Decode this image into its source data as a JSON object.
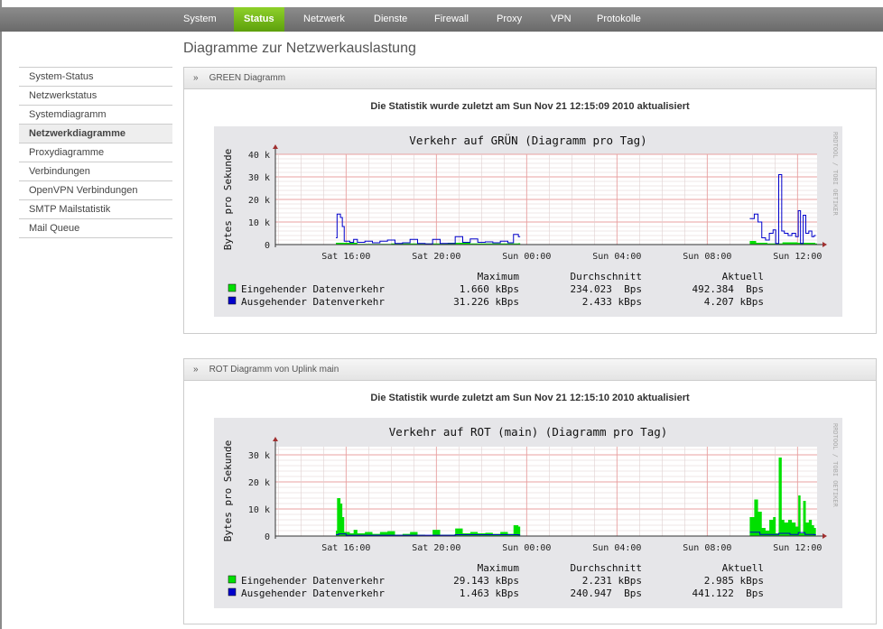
{
  "nav": {
    "items": [
      "System",
      "Status",
      "Netzwerk",
      "Dienste",
      "Firewall",
      "Proxy",
      "VPN",
      "Protokolle"
    ],
    "active": "Status"
  },
  "page_title": "Diagramme zur Netzwerkauslastung",
  "sidebar": {
    "items": [
      "System-Status",
      "Netzwerkstatus",
      "Systemdiagramm",
      "Netzwerkdiagramme",
      "Proxydiagramme",
      "Verbindungen",
      "OpenVPN Verbindungen",
      "SMTP Mailstatistik",
      "Mail Queue"
    ],
    "active": "Netzwerkdiagramme"
  },
  "panels": [
    {
      "title": "GREEN Diagramm",
      "chevron": "»",
      "status": "Die Statistik wurde zuletzt am Sun Nov 21 12:15:09 2010 aktualisiert"
    },
    {
      "title": "ROT Diagramm von Uplink main",
      "chevron": "»",
      "status": "Die Statistik wurde zuletzt am Sun Nov 21 12:15:10 2010 aktualisiert"
    }
  ],
  "colors": {
    "incoming": "#00e000",
    "outgoing": "#0000cc",
    "nav_active": "#6db515",
    "chart_bg": "#e6e6e9",
    "grid_major": "#e8a0a0",
    "grid_minor": "#e0d0d0"
  },
  "chart_data": [
    {
      "type": "line",
      "title": "Verkehr auf GRÜN (Diagramm pro Tag)",
      "ylabel": "Bytes pro Sekunde",
      "watermark": "RRDTOOL / TOBI OETIKER",
      "ylim": [
        0,
        40
      ],
      "yticks": [
        "0",
        "10 k",
        "20 k",
        "30 k",
        "40 k"
      ],
      "xrange": [
        "Sat 12:52",
        "Sun 12:52"
      ],
      "xticks": [
        "Sat 16:00",
        "Sat 20:00",
        "Sun 00:00",
        "Sun 04:00",
        "Sun 08:00",
        "Sun 12:00"
      ],
      "grid": true,
      "legend_headers": [
        "Maximum",
        "Durchschnitt",
        "Aktuell"
      ],
      "series": [
        {
          "name": "Eingehender Datenverkehr",
          "style": "area",
          "color": "#00e000",
          "stats": [
            "1.660 kBps",
            "234.023  Bps",
            "492.384  Bps"
          ],
          "points": [
            [
              "Sat 15:33",
              0.8
            ],
            [
              "Sat 16:30",
              0.3
            ],
            [
              "Sat 18:00",
              0.5
            ],
            [
              "Sat 20:30",
              0.8
            ],
            [
              "Sat 21:30",
              0.5
            ],
            [
              "Sat 23:38",
              0.6
            ],
            [
              "Sat 23:39",
              null
            ],
            [
              "Sun 09:53",
              1.6
            ],
            [
              "Sun 10:10",
              0.8
            ],
            [
              "Sun 10:40",
              0.5
            ],
            [
              "Sun 11:20",
              1
            ],
            [
              "Sun 12:00",
              0.8
            ],
            [
              "Sun 12:47",
              0.5
            ]
          ]
        },
        {
          "name": "Ausgehender Datenverkehr",
          "style": "line",
          "color": "#0000cc",
          "stats": [
            "31.226 kBps",
            "2.433 kBps",
            "4.207 kBps"
          ],
          "points": [
            [
              "Sat 15:33",
              3
            ],
            [
              "Sat 15:36",
              13.5
            ],
            [
              "Sat 15:45",
              12
            ],
            [
              "Sat 15:50",
              8
            ],
            [
              "Sat 15:55",
              1.5
            ],
            [
              "Sat 16:10",
              1
            ],
            [
              "Sat 16:20",
              2.3
            ],
            [
              "Sat 16:30",
              1
            ],
            [
              "Sat 16:50",
              1.5
            ],
            [
              "Sat 17:10",
              0.8
            ],
            [
              "Sat 17:30",
              1.5
            ],
            [
              "Sat 17:50",
              2
            ],
            [
              "Sat 18:10",
              0.5
            ],
            [
              "Sat 18:30",
              0.8
            ],
            [
              "Sat 18:50",
              2.3
            ],
            [
              "Sat 19:10",
              0.5
            ],
            [
              "Sat 19:30",
              0.3
            ],
            [
              "Sat 19:50",
              2.3
            ],
            [
              "Sat 20:10",
              0.5
            ],
            [
              "Sat 20:30",
              0.5
            ],
            [
              "Sat 20:50",
              3.5
            ],
            [
              "Sat 21:10",
              1
            ],
            [
              "Sat 21:30",
              2.5
            ],
            [
              "Sat 21:50",
              1
            ],
            [
              "Sat 22:10",
              1.2
            ],
            [
              "Sat 22:30",
              0.8
            ],
            [
              "Sat 22:50",
              1.5
            ],
            [
              "Sat 23:10",
              0.8
            ],
            [
              "Sat 23:25",
              4.5
            ],
            [
              "Sat 23:38",
              3.5
            ],
            [
              "Sat 23:39",
              null
            ],
            [
              "Sun 09:53",
              11.5
            ],
            [
              "Sun 10:05",
              13.5
            ],
            [
              "Sun 10:15",
              10
            ],
            [
              "Sun 10:25",
              3
            ],
            [
              "Sun 10:35",
              2
            ],
            [
              "Sun 10:45",
              5
            ],
            [
              "Sun 10:55",
              6.5
            ],
            [
              "Sun 11:02",
              0.5
            ],
            [
              "Sun 11:10",
              31
            ],
            [
              "Sun 11:18",
              6
            ],
            [
              "Sun 11:25",
              5
            ],
            [
              "Sun 11:35",
              4
            ],
            [
              "Sun 11:45",
              5
            ],
            [
              "Sun 11:55",
              3.5
            ],
            [
              "Sun 12:02",
              15
            ],
            [
              "Sun 12:08",
              0.5
            ],
            [
              "Sun 12:15",
              13
            ],
            [
              "Sun 12:22",
              5
            ],
            [
              "Sun 12:30",
              6
            ],
            [
              "Sun 12:38",
              3.5
            ],
            [
              "Sun 12:44",
              4
            ]
          ]
        }
      ]
    },
    {
      "type": "area",
      "title": "Verkehr auf ROT (main) (Diagramm pro Tag)",
      "ylabel": "Bytes pro Sekunde",
      "watermark": "RRDTOOL / TOBI OETIKER",
      "ylim": [
        0,
        33
      ],
      "yticks": [
        "0",
        "10 k",
        "20 k",
        "30 k"
      ],
      "xrange": [
        "Sat 12:52",
        "Sun 12:52"
      ],
      "xticks": [
        "Sat 16:00",
        "Sat 20:00",
        "Sun 00:00",
        "Sun 04:00",
        "Sun 08:00",
        "Sun 12:00"
      ],
      "grid": true,
      "legend_headers": [
        "Maximum",
        "Durchschnitt",
        "Aktuell"
      ],
      "series": [
        {
          "name": "Eingehender Datenverkehr",
          "style": "area",
          "color": "#00e000",
          "stats": [
            "29.143 kBps",
            "2.231 kBps",
            "2.985 kBps"
          ],
          "points": [
            [
              "Sat 15:33",
              2
            ],
            [
              "Sat 15:36",
              14
            ],
            [
              "Sat 15:45",
              12
            ],
            [
              "Sat 15:50",
              7
            ],
            [
              "Sat 15:55",
              1.5
            ],
            [
              "Sat 16:10",
              1
            ],
            [
              "Sat 16:20",
              2.3
            ],
            [
              "Sat 16:30",
              1
            ],
            [
              "Sat 16:50",
              1.5
            ],
            [
              "Sat 17:10",
              0.8
            ],
            [
              "Sat 17:30",
              1.5
            ],
            [
              "Sat 17:50",
              1.8
            ],
            [
              "Sat 18:10",
              0.5
            ],
            [
              "Sat 18:30",
              0.8
            ],
            [
              "Sat 18:50",
              1.5
            ],
            [
              "Sat 19:10",
              0.5
            ],
            [
              "Sat 19:30",
              0.3
            ],
            [
              "Sat 19:50",
              2.3
            ],
            [
              "Sat 20:10",
              0.5
            ],
            [
              "Sat 20:30",
              0.5
            ],
            [
              "Sat 20:50",
              2.8
            ],
            [
              "Sat 21:10",
              1
            ],
            [
              "Sat 21:30",
              1.5
            ],
            [
              "Sat 21:50",
              1
            ],
            [
              "Sat 22:10",
              1.2
            ],
            [
              "Sat 22:30",
              0.8
            ],
            [
              "Sat 22:50",
              1.5
            ],
            [
              "Sat 23:10",
              0.8
            ],
            [
              "Sat 23:25",
              4
            ],
            [
              "Sat 23:38",
              3.5
            ],
            [
              "Sat 23:39",
              null
            ],
            [
              "Sun 09:53",
              7
            ],
            [
              "Sun 10:05",
              13.5
            ],
            [
              "Sun 10:15",
              9
            ],
            [
              "Sun 10:25",
              3
            ],
            [
              "Sun 10:35",
              2
            ],
            [
              "Sun 10:45",
              6
            ],
            [
              "Sun 10:55",
              7
            ],
            [
              "Sun 11:02",
              1
            ],
            [
              "Sun 11:10",
              29
            ],
            [
              "Sun 11:18",
              6
            ],
            [
              "Sun 11:25",
              5
            ],
            [
              "Sun 11:35",
              6
            ],
            [
              "Sun 11:45",
              5
            ],
            [
              "Sun 11:55",
              3.5
            ],
            [
              "Sun 12:02",
              15
            ],
            [
              "Sun 12:08",
              1
            ],
            [
              "Sun 12:15",
              13
            ],
            [
              "Sun 12:22",
              5
            ],
            [
              "Sun 12:30",
              6
            ],
            [
              "Sun 12:38",
              4
            ],
            [
              "Sun 12:44",
              3
            ]
          ]
        },
        {
          "name": "Ausgehender Datenverkehr",
          "style": "line",
          "color": "#0000cc",
          "stats": [
            "1.463 kBps",
            "240.947  Bps",
            "441.122  Bps"
          ],
          "points": [
            [
              "Sat 15:33",
              0.5
            ],
            [
              "Sat 15:40",
              0.8
            ],
            [
              "Sat 16:00",
              0.3
            ],
            [
              "Sat 20:50",
              0.5
            ],
            [
              "Sat 23:38",
              0.4
            ],
            [
              "Sat 23:39",
              null
            ],
            [
              "Sun 09:53",
              1.4
            ],
            [
              "Sun 10:20",
              0.6
            ],
            [
              "Sun 11:10",
              1
            ],
            [
              "Sun 11:40",
              0.6
            ],
            [
              "Sun 12:02",
              1.3
            ],
            [
              "Sun 12:20",
              0.6
            ],
            [
              "Sun 12:44",
              0.5
            ]
          ]
        }
      ]
    }
  ]
}
